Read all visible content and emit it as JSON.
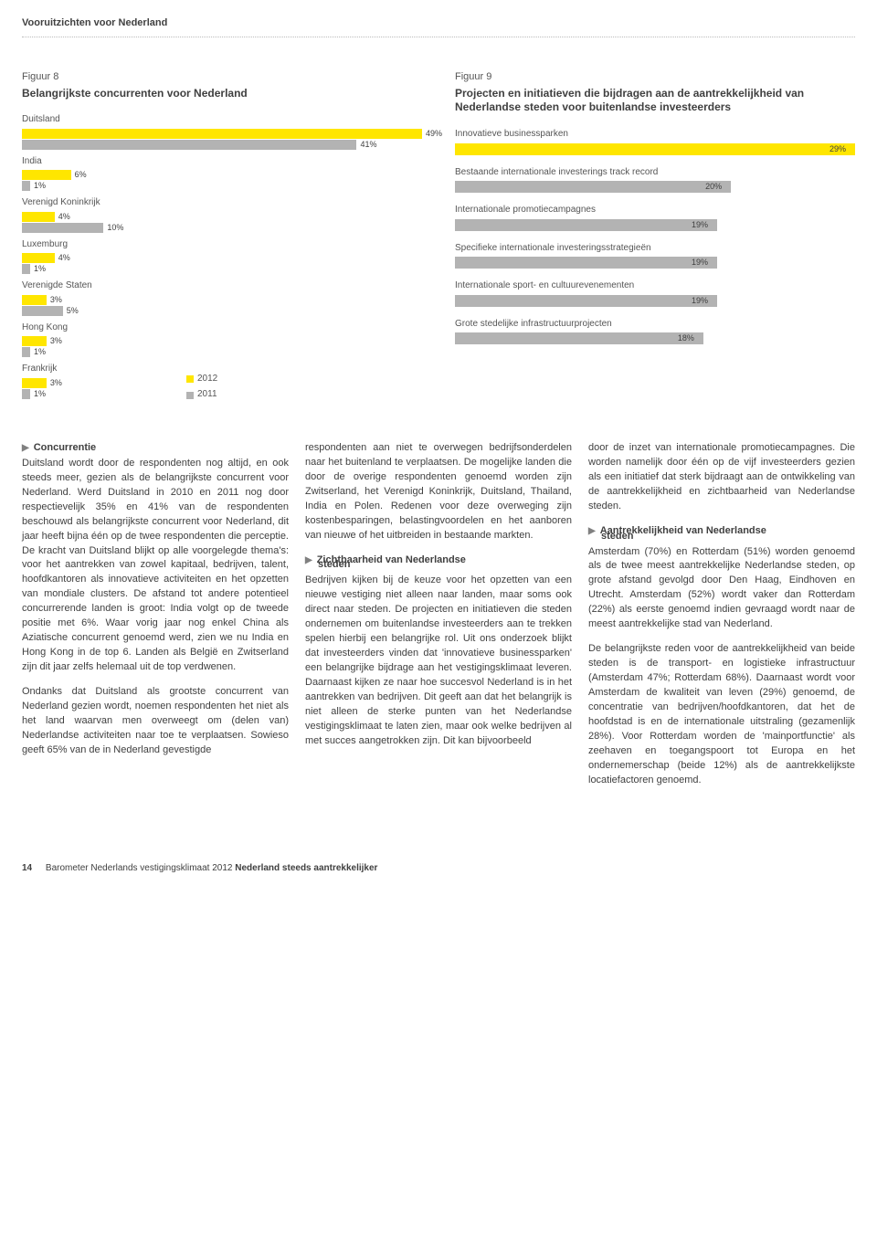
{
  "header": "Vooruitzichten voor Nederland",
  "fig8": {
    "label": "Figuur 8",
    "title": "Belangrijkste concurrenten voor Nederland",
    "full_width_pct": 49,
    "colors": {
      "series2012": "#ffe600",
      "series2011": "#b3b3b3"
    },
    "legend": [
      {
        "label": "2012",
        "color": "#ffe600"
      },
      {
        "label": "2011",
        "color": "#b3b3b3"
      }
    ],
    "countries": [
      {
        "name": "Duitsland",
        "v2012": 49,
        "v2011": 41
      },
      {
        "name": "India",
        "v2012": 6,
        "v2011": 1
      },
      {
        "name": "Verenigd Koninkrijk",
        "v2012": 4,
        "v2011": 10
      },
      {
        "name": "Luxemburg",
        "v2012": 4,
        "v2011": 1
      },
      {
        "name": "Verenigde Staten",
        "v2012": 3,
        "v2011": 5
      },
      {
        "name": "Hong Kong",
        "v2012": 3,
        "v2011": 1
      },
      {
        "name": "Frankrijk",
        "v2012": 3,
        "v2011": 1
      }
    ]
  },
  "fig9": {
    "label": "Figuur 9",
    "title": "Projecten en initiatieven die bijdragen aan de aantrekkelijkheid van Nederlandse steden voor buitenlandse investeerders",
    "max_pct": 29,
    "colors": {
      "top": "#ffe600",
      "rest": "#b3b3b3"
    },
    "items": [
      {
        "label": "Innovatieve businessparken",
        "value": 29,
        "top": true
      },
      {
        "label": "Bestaande internationale investerings track record",
        "value": 20,
        "top": false
      },
      {
        "label": "Internationale promotiecampagnes",
        "value": 19,
        "top": false
      },
      {
        "label": "Specifieke internationale investeringsstrategieën",
        "value": 19,
        "top": false
      },
      {
        "label": "Internationale sport- en cultuurevenementen",
        "value": 19,
        "top": false
      },
      {
        "label": "Grote stedelijke infrastructuurprojecten",
        "value": 18,
        "top": false
      }
    ]
  },
  "body": {
    "col1": {
      "h1": "Concurrentie",
      "p1": "Duitsland wordt door de respondenten nog altijd, en ook steeds meer, gezien als de belangrijkste concurrent voor Nederland. Werd Duitsland in 2010 en 2011 nog door respectievelijk 35% en 41% van de respondenten beschouwd als belangrijkste concurrent voor Nederland, dit jaar heeft bijna één op de twee respondenten die perceptie. De kracht van Duitsland blijkt op alle voorgelegde thema's: voor het aantrekken van zowel kapitaal, bedrijven, talent, hoofdkantoren als innovatieve activiteiten en het opzetten van mondiale clusters. De afstand tot andere potentieel concurrerende landen is groot: India volgt op de tweede positie met 6%. Waar vorig jaar nog enkel China als Aziatische concurrent genoemd werd, zien we nu India en Hong Kong in de top 6. Landen als België en Zwitserland zijn dit jaar zelfs helemaal uit de top verdwenen.",
      "p2": "Ondanks dat Duitsland als grootste concurrent van Nederland gezien wordt, noemen respondenten het niet als het land waarvan men overweegt om (delen van) Nederlandse activiteiten naar toe te verplaatsen. Sowieso geeft 65% van de in Nederland gevestigde"
    },
    "col2": {
      "p1": "respondenten aan niet te overwegen bedrijfsonderdelen naar het buitenland te verplaatsen. De mogelijke landen die door de overige respondenten genoemd worden zijn Zwitserland, het Verenigd Koninkrijk, Duitsland, Thailand, India en Polen. Redenen voor deze overweging zijn kostenbesparingen, belastingvoordelen en het aanboren van nieuwe of het uitbreiden in bestaande markten.",
      "h1a": "Zichtbaarheid van Nederlandse",
      "h1b": "steden",
      "p2": "Bedrijven kijken bij de keuze voor het opzetten van een nieuwe vestiging niet alleen naar landen, maar soms ook direct naar steden. De projecten en initiatieven die steden ondernemen om buitenlandse investeerders aan te trekken spelen hierbij een belangrijke rol. Uit ons onderzoek blijkt dat investeerders vinden dat 'innovatieve businessparken' een belangrijke bijdrage aan het vestigingsklimaat leveren. Daarnaast kijken ze naar hoe succesvol Nederland is in het aantrekken van bedrijven. Dit geeft aan dat het belangrijk is niet alleen de sterke punten van het Nederlandse vestigingsklimaat te laten zien, maar ook welke bedrijven al met succes aangetrokken zijn. Dit kan bijvoorbeeld"
    },
    "col3": {
      "p1": "door de inzet van internationale promotie­campagnes. Die worden namelijk door één op de vijf investeerders gezien als een initiatief dat sterk bijdraagt aan de ontwikkeling van de aantrekkelijkheid en zichtbaarheid van Nederlandse steden.",
      "h1a": "Aantrekkelijkheid van Nederlandse",
      "h1b": "steden",
      "p2": "Amsterdam (70%) en Rotterdam (51%) worden genoemd als de twee meest aantrekkelijke Nederlandse steden, op grote afstand gevolgd door Den Haag, Eindhoven en Utrecht. Amsterdam (52%) wordt vaker dan Rotterdam (22%) als eerste genoemd indien gevraagd wordt naar de meest aantrekkelijke stad van Nederland.",
      "p3": "De belangrijkste reden voor de aantrekkelijk­heid van beide steden is de transport- en logistieke infrastructuur (Amsterdam 47%; Rotterdam 68%). Daarnaast wordt voor Amsterdam de kwaliteit van leven (29%) genoemd, de concentratie van bedrijven/hoofdkantoren, dat het de hoofdstad is en de internationale uitstraling (gezamenlijk 28%). Voor Rotterdam worden de 'mainportfunctie' als zeehaven en toegangspoort tot Europa en het ondernemerschap (beide 12%) als de aantrekkelijkste locatiefactoren genoemd."
    }
  },
  "footer": {
    "page": "14",
    "text": "Barometer Nederlands vestigingsklimaat 2012 ",
    "bold": "Nederland steeds aantrekkelijker"
  }
}
